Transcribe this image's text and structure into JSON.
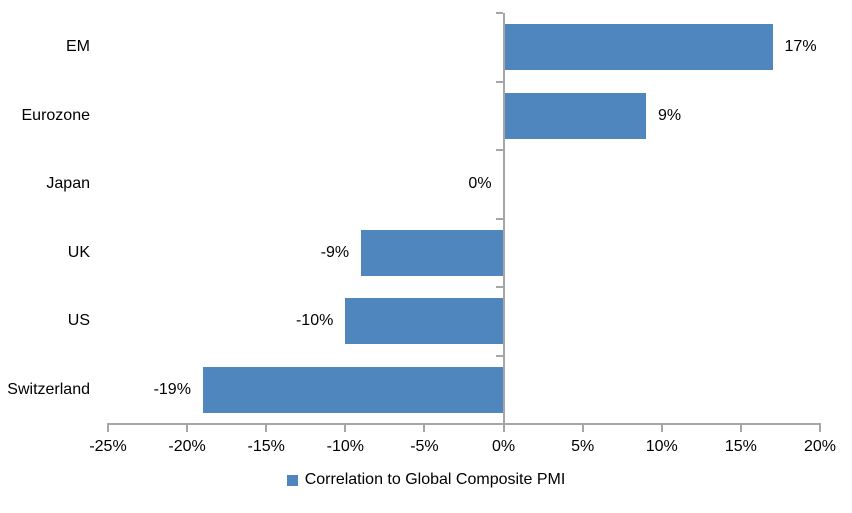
{
  "chart_data": {
    "type": "bar",
    "orientation": "horizontal",
    "categories": [
      "EM",
      "Eurozone",
      "Japan",
      "UK",
      "US",
      "Switzerland"
    ],
    "values": [
      17,
      9,
      0,
      -9,
      -10,
      -19
    ],
    "value_labels": [
      "17%",
      "9%",
      "0%",
      "-9%",
      "-10%",
      "-19%"
    ],
    "xlim": [
      -25,
      20
    ],
    "x_ticks": [
      -25,
      -20,
      -15,
      -10,
      -5,
      0,
      5,
      10,
      15,
      20
    ],
    "x_tick_labels": [
      "-25%",
      "-20%",
      "-15%",
      "-10%",
      "-5%",
      "0%",
      "5%",
      "10%",
      "15%",
      "20%"
    ],
    "grid": false,
    "legend_position": "bottom",
    "legend": [
      {
        "label": "Correlation to Global Composite PMI",
        "color": "#4F86BD"
      }
    ],
    "colors": {
      "bar": "#4F86BD",
      "axis": "#A6A6A6",
      "text": "#000000",
      "background": "#FFFFFF"
    }
  }
}
